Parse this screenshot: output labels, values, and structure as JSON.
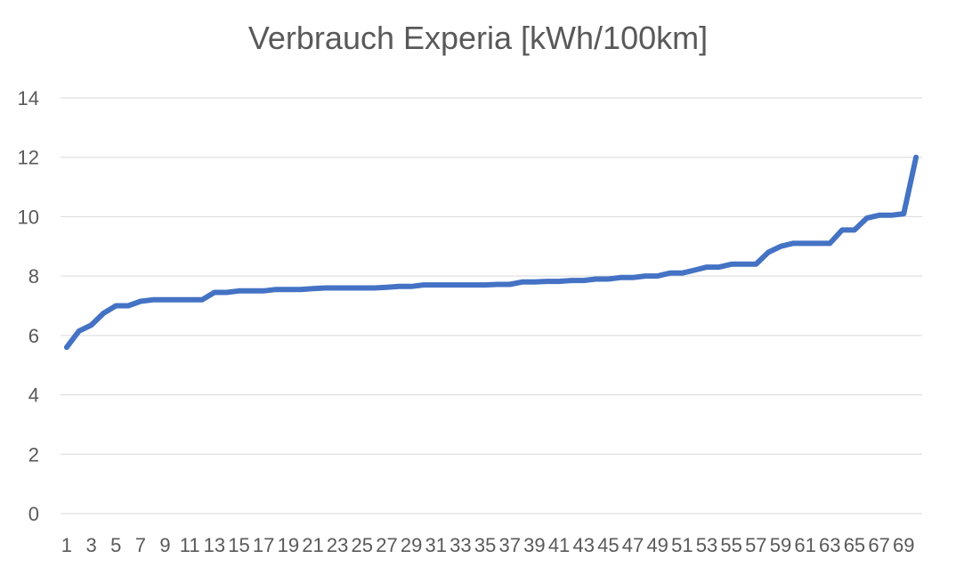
{
  "chart_data": {
    "type": "line",
    "title": "Verbrauch Experia [kWh/100km]",
    "xlabel": "",
    "ylabel": "",
    "ylim": [
      0,
      14
    ],
    "yticks": [
      0,
      2,
      4,
      6,
      8,
      10,
      12,
      14
    ],
    "x_tick_labels": [
      "1",
      "3",
      "5",
      "7",
      "9",
      "11",
      "13",
      "15",
      "17",
      "19",
      "21",
      "23",
      "25",
      "27",
      "29",
      "31",
      "33",
      "35",
      "37",
      "39",
      "41",
      "43",
      "45",
      "47",
      "49",
      "51",
      "53",
      "55",
      "57",
      "59",
      "61",
      "63",
      "65",
      "67",
      "69"
    ],
    "grid": true,
    "legend": "none",
    "line_color": "#4472c4",
    "x": [
      1,
      2,
      3,
      4,
      5,
      6,
      7,
      8,
      9,
      10,
      11,
      12,
      13,
      14,
      15,
      16,
      17,
      18,
      19,
      20,
      21,
      22,
      23,
      24,
      25,
      26,
      27,
      28,
      29,
      30,
      31,
      32,
      33,
      34,
      35,
      36,
      37,
      38,
      39,
      40,
      41,
      42,
      43,
      44,
      45,
      46,
      47,
      48,
      49,
      50,
      51,
      52,
      53,
      54,
      55,
      56,
      57,
      58,
      59,
      60,
      61,
      62,
      63,
      64,
      65,
      66,
      67,
      68,
      69,
      70
    ],
    "values": [
      5.6,
      6.15,
      6.35,
      6.75,
      7.0,
      7.0,
      7.15,
      7.2,
      7.2,
      7.2,
      7.2,
      7.2,
      7.45,
      7.45,
      7.5,
      7.5,
      7.5,
      7.55,
      7.55,
      7.55,
      7.58,
      7.6,
      7.6,
      7.6,
      7.6,
      7.6,
      7.62,
      7.65,
      7.65,
      7.7,
      7.7,
      7.7,
      7.7,
      7.7,
      7.7,
      7.72,
      7.72,
      7.8,
      7.8,
      7.82,
      7.82,
      7.85,
      7.85,
      7.9,
      7.9,
      7.95,
      7.95,
      8.0,
      8.0,
      8.1,
      8.1,
      8.2,
      8.3,
      8.3,
      8.4,
      8.4,
      8.4,
      8.8,
      9.0,
      9.1,
      9.1,
      9.1,
      9.1,
      9.55,
      9.55,
      9.95,
      10.05,
      10.05,
      10.1,
      12.0
    ]
  }
}
